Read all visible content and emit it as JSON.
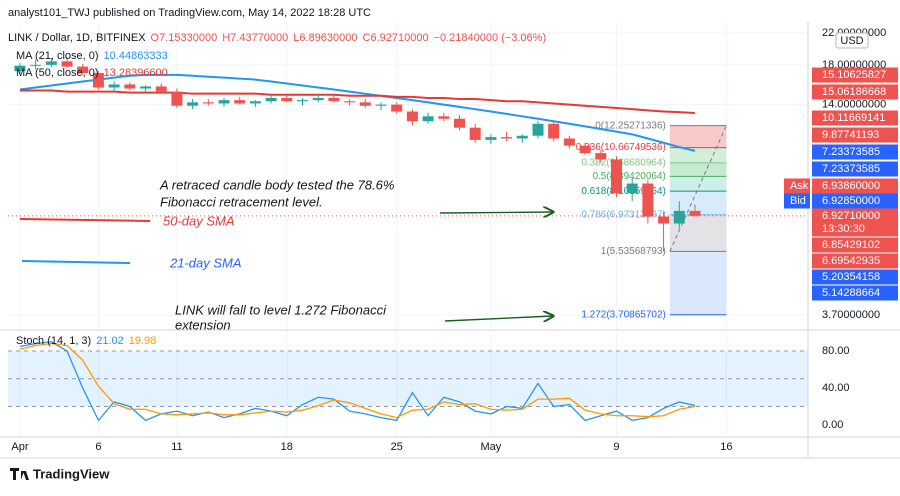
{
  "chart_data": {
    "type": "candlestick",
    "title": "analyst101_TWJ published on TradingView.com, May 14, 2022 18:28 UTC",
    "symbol": "LINK / Dollar, 1D, BITFINEX",
    "ohlc_labels": [
      "O7.15330000",
      "H7.43770000",
      "L6.89630000",
      "C6.92710000",
      "−0.21840000 (−3.06%)"
    ],
    "x": [
      0,
      1,
      2,
      3,
      4,
      5,
      6,
      7,
      8,
      9,
      10,
      11,
      12,
      13,
      14,
      15,
      16,
      17,
      18,
      19,
      20,
      21,
      22,
      23,
      24,
      25,
      26,
      27,
      28,
      29,
      30,
      31,
      32,
      33,
      34,
      35,
      36,
      37,
      38,
      39,
      40,
      41,
      42,
      43
    ],
    "open": [
      17.3,
      17.9,
      18.0,
      18.4,
      17.8,
      17.1,
      15.6,
      15.9,
      15.5,
      15.7,
      15.2,
      13.9,
      14.2,
      14.1,
      14.4,
      14.1,
      14.3,
      14.6,
      14.3,
      14.4,
      14.6,
      14.3,
      14.2,
      13.9,
      14.0,
      13.4,
      12.6,
      13.0,
      12.8,
      12.1,
      11.2,
      11.4,
      11.3,
      11.5,
      12.4,
      11.3,
      10.8,
      10.3,
      9.9,
      8.0,
      8.5,
      6.9,
      6.6,
      7.15
    ],
    "high": [
      18.2,
      18.6,
      18.8,
      18.9,
      18.1,
      17.3,
      16.2,
      16.1,
      15.8,
      16.0,
      15.5,
      14.5,
      14.5,
      14.6,
      14.7,
      14.4,
      14.9,
      14.8,
      14.6,
      14.9,
      14.8,
      14.5,
      14.5,
      14.2,
      14.2,
      13.6,
      13.3,
      13.3,
      13.1,
      12.4,
      11.6,
      11.8,
      11.6,
      12.6,
      12.6,
      11.5,
      11.0,
      10.5,
      10.1,
      8.8,
      8.7,
      7.1,
      7.6,
      7.44
    ],
    "low": [
      17.0,
      17.5,
      17.7,
      17.6,
      16.9,
      15.4,
      15.2,
      15.3,
      15.0,
      15.1,
      13.7,
      13.6,
      13.9,
      13.8,
      14.0,
      13.8,
      14.1,
      14.2,
      13.9,
      14.2,
      14.2,
      13.9,
      13.7,
      13.5,
      13.2,
      12.3,
      12.4,
      12.6,
      11.9,
      11.0,
      10.9,
      11.1,
      11.0,
      11.3,
      11.1,
      10.6,
      10.2,
      9.7,
      7.8,
      7.6,
      6.6,
      5.53,
      6.4,
      6.9
    ],
    "close": [
      17.9,
      18.0,
      18.4,
      17.8,
      17.1,
      15.6,
      15.9,
      15.5,
      15.7,
      15.2,
      13.9,
      14.2,
      14.1,
      14.4,
      14.1,
      14.3,
      14.6,
      14.3,
      14.4,
      14.6,
      14.3,
      14.2,
      13.9,
      14.0,
      13.4,
      12.6,
      13.0,
      12.8,
      12.1,
      11.2,
      11.4,
      11.3,
      11.5,
      12.4,
      11.3,
      10.8,
      10.3,
      9.9,
      8.0,
      8.5,
      6.9,
      6.6,
      7.15,
      6.93
    ],
    "up_color": "#26a69a",
    "down_color": "#ef5350",
    "xlim": [
      -0.76,
      50.2
    ],
    "xticks": [
      {
        "value": 0,
        "label": "Apr"
      },
      {
        "value": 5,
        "label": "6"
      },
      {
        "value": 10,
        "label": "11"
      },
      {
        "value": 17,
        "label": "18"
      },
      {
        "value": 24,
        "label": "25"
      },
      {
        "value": 30,
        "label": "May"
      },
      {
        "value": 38,
        "label": "9"
      },
      {
        "value": 45,
        "label": "16"
      }
    ],
    "ylim": [
      3.41,
      23.6
    ],
    "log_scale": true,
    "yticks": [
      {
        "value": 22,
        "label": "22.00000000"
      },
      {
        "value": 18,
        "label": "18.00000000"
      },
      {
        "value": 14,
        "label": "14.00000000"
      },
      {
        "value": 3.7,
        "label": "3.70000000"
      }
    ],
    "currency": "USD",
    "series": [
      {
        "name": "MA (21, close, 0)",
        "legend_value": "10.44863333",
        "color": "#2196f3",
        "values": [
          15.4,
          15.6,
          15.8,
          16.0,
          16.2,
          16.4,
          16.6,
          16.8,
          16.9,
          16.9,
          16.9,
          16.8,
          16.7,
          16.6,
          16.5,
          16.4,
          16.2,
          16.0,
          15.8,
          15.6,
          15.4,
          15.2,
          15.0,
          14.8,
          14.6,
          14.4,
          14.2,
          14.0,
          13.8,
          13.6,
          13.4,
          13.2,
          13.0,
          12.8,
          12.6,
          12.4,
          12.2,
          12.0,
          11.8,
          11.6,
          11.3,
          11.0,
          10.7,
          10.45
        ]
      },
      {
        "name": "MA (50, close, 0)",
        "legend_value": "13.28396600",
        "color": "#e53935",
        "values": [
          15.3,
          15.3,
          15.3,
          15.2,
          15.2,
          15.2,
          15.2,
          15.1,
          15.1,
          15.1,
          15.1,
          15.0,
          15.0,
          15.0,
          15.0,
          15.0,
          14.9,
          14.9,
          14.9,
          14.9,
          14.9,
          14.8,
          14.8,
          14.8,
          14.7,
          14.7,
          14.6,
          14.6,
          14.5,
          14.5,
          14.4,
          14.3,
          14.3,
          14.2,
          14.1,
          14.0,
          13.9,
          13.8,
          13.7,
          13.6,
          13.5,
          13.4,
          13.35,
          13.28
        ]
      }
    ],
    "fib": {
      "levels": [
        {
          "value": 12.25271336,
          "label": "0(12.25271336)"
        },
        {
          "value": 10.66749536,
          "label": "0.236(10.66749536)"
        },
        {
          "value": 9.68680964,
          "label": "0.382(9.68680964)"
        },
        {
          "value": 8.89420064,
          "label": "0.5(8.89420064)"
        },
        {
          "value": 8.10159164,
          "label": "0.618(8.10159164)"
        },
        {
          "value": 6.97313197,
          "label": "0.786(6.97313197)"
        },
        {
          "value": 5.53568793,
          "label": "1(5.53568793)"
        },
        {
          "value": 3.70865702,
          "label": "1.272(3.70865702)"
        }
      ],
      "colors": [
        "#f8c9c9",
        "#d4efd9",
        "#c4ead0",
        "#cdeee9",
        "#d6ecfb",
        "#e3e3e6",
        "#dbe8fb"
      ],
      "line_colors": [
        "#787b86",
        "#f23645",
        "#81c784",
        "#4caf50",
        "#089981",
        "#64b5f6",
        "#787b86",
        "#2962ff"
      ]
    },
    "price_labels": [
      {
        "text": "15.10625827",
        "color": "#ef5350"
      },
      {
        "text": "15.06186668",
        "color": "#ef5350"
      },
      {
        "text": "10.11669141",
        "color": "#ef5350"
      },
      {
        "text": "9.87741193",
        "color": "#ef5350"
      },
      {
        "text": "7.23373585",
        "color": "#2962ff"
      },
      {
        "text": "7.23373585",
        "color": "#2962ff"
      },
      {
        "tag": "Ask",
        "text": "6.93860000",
        "color": "#ef5350"
      },
      {
        "tag": "Bid",
        "text": "6.92850000",
        "color": "#2962ff"
      },
      {
        "text": "6.92710000",
        "sub": "13:30:30",
        "color": "#ef5350"
      },
      {
        "text": "6.85429102",
        "color": "#ef5350"
      },
      {
        "text": "6.69542935",
        "color": "#ef5350"
      },
      {
        "text": "5.20354158",
        "color": "#2962ff"
      },
      {
        "text": "5.14288664",
        "color": "#2962ff"
      }
    ],
    "stoch": {
      "name": "Stoch (14, 1, 3)",
      "k_label": "21.02",
      "d_label": "19.98",
      "k_color": "#2196f3",
      "d_color": "#ff9800",
      "ylim": [
        -13,
        99.5
      ],
      "yticks": [
        {
          "value": 80,
          "label": "80.00"
        },
        {
          "value": 40,
          "label": "40.00"
        },
        {
          "value": 0,
          "label": "0.00"
        }
      ],
      "levels": [
        80,
        50,
        20
      ],
      "k": [
        85,
        88,
        90,
        80,
        40,
        5,
        25,
        20,
        5,
        12,
        15,
        10,
        14,
        8,
        12,
        18,
        15,
        10,
        22,
        30,
        28,
        15,
        12,
        8,
        5,
        35,
        10,
        30,
        25,
        15,
        12,
        20,
        18,
        45,
        20,
        22,
        5,
        10,
        15,
        5,
        8,
        18,
        25,
        21.02
      ],
      "d": [
        82,
        86,
        88,
        86,
        70,
        42,
        23,
        17,
        17,
        12,
        11,
        12,
        13,
        11,
        11,
        13,
        15,
        14,
        16,
        21,
        27,
        24,
        18,
        12,
        8,
        16,
        17,
        25,
        22,
        23,
        17,
        16,
        17,
        28,
        28,
        29,
        16,
        12,
        10,
        10,
        9,
        10,
        17,
        19.98
      ]
    },
    "annotations": [
      "A retraced candle body tested the 78.6%",
      "Fibonacci retracement level.",
      "50-day SMA",
      "21-day SMA",
      "LINK will fall to level 1.272 Fibonacci",
      "extension"
    ],
    "footer": "TradingView"
  }
}
